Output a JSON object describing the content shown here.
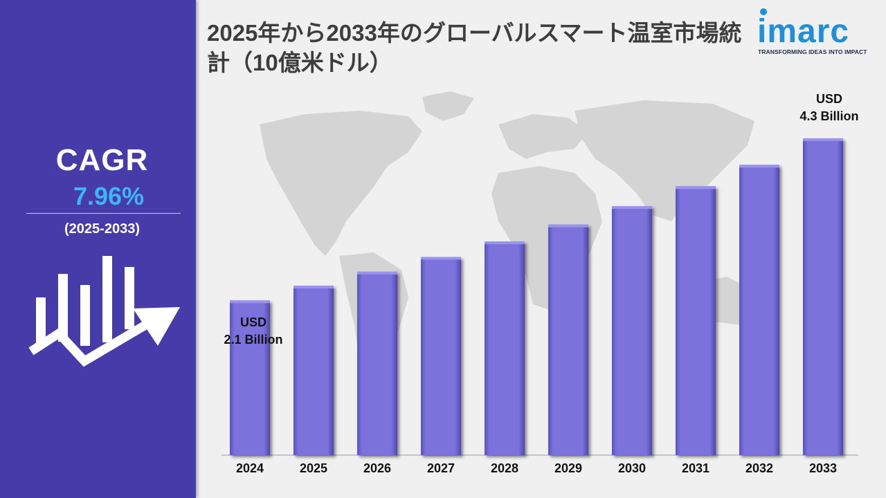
{
  "title": "2025年から2033年のグローバルスマート温室市場統計（10億米ドル）",
  "cagr": {
    "label": "CAGR",
    "value": "7.96%",
    "period": "(2025-2033)"
  },
  "logo": {
    "brand": "imarc",
    "tagline": "TRANSFORMING IDEAS INTO IMPACT"
  },
  "colors": {
    "panel": "#463ba9",
    "cagr_value": "#3fb6f4",
    "bar": "#7b72dc",
    "bar_light": "#9a92ec",
    "bar_dark": "#5a51bd",
    "logo": "#1e8fd8"
  },
  "icons": [
    "growth-chart-arrow-icon",
    "world-map-icon"
  ],
  "chart_data": {
    "type": "bar",
    "categories": [
      "2024",
      "2025",
      "2026",
      "2027",
      "2028",
      "2029",
      "2030",
      "2031",
      "2032",
      "2033"
    ],
    "values": [
      2.1,
      2.3,
      2.49,
      2.69,
      2.9,
      3.13,
      3.38,
      3.65,
      3.94,
      4.3
    ],
    "units": "USD Billion",
    "annotations": [
      {
        "category": "2024",
        "line1": "USD",
        "line2": "2.1 Billion"
      },
      {
        "category": "2033",
        "line1": "USD",
        "line2": "4.3 Billion"
      }
    ],
    "grid": false,
    "legend": "none"
  }
}
